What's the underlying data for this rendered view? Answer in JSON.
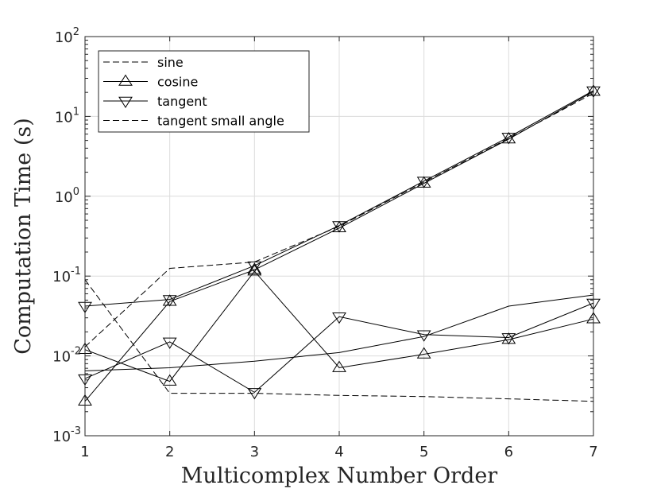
{
  "chart_data": {
    "type": "line",
    "xlabel": "Multicomplex Number Order",
    "ylabel": "Computation Time (s)",
    "x_ticks": [
      "1",
      "2",
      "3",
      "4",
      "5",
      "6",
      "7"
    ],
    "y_scale": "log",
    "y_ticks": [
      {
        "base": "10",
        "exp": "-3"
      },
      {
        "base": "10",
        "exp": "-2"
      },
      {
        "base": "10",
        "exp": "-1"
      },
      {
        "base": "10",
        "exp": "0"
      },
      {
        "base": "10",
        "exp": "1"
      },
      {
        "base": "10",
        "exp": "2"
      }
    ],
    "xlim": [
      1,
      7
    ],
    "ylim": [
      0.001,
      100
    ],
    "grid": true,
    "legend_position": "top-left",
    "legend": [
      {
        "label": "sine",
        "dash": "dashed",
        "marker": "none"
      },
      {
        "label": "cosine",
        "dash": "solid",
        "marker": "triangle-up"
      },
      {
        "label": "tangent",
        "dash": "solid",
        "marker": "triangle-down"
      },
      {
        "label": "tangent small angle",
        "dash": "dashed",
        "marker": "none"
      }
    ],
    "series": [
      {
        "name": "sine",
        "dash": "dashed",
        "marker": "none",
        "x": [
          1,
          2,
          3,
          4,
          5,
          6,
          7
        ],
        "y": [
          0.013,
          0.125,
          0.15,
          0.42,
          1.5,
          5.3,
          19.5
        ]
      },
      {
        "name": "cosine",
        "dash": "solid",
        "marker": "triangle-up",
        "x": [
          1,
          2,
          3,
          4,
          5,
          6,
          7
        ],
        "y": [
          0.0027,
          0.048,
          0.12,
          0.4,
          1.45,
          5.2,
          20.5
        ]
      },
      {
        "name": "tangent",
        "dash": "solid",
        "marker": "triangle-down",
        "x": [
          1,
          2,
          3,
          4,
          5,
          6,
          7
        ],
        "y": [
          0.042,
          0.051,
          0.135,
          0.43,
          1.55,
          5.5,
          21
        ]
      },
      {
        "name": "tangent small angle",
        "dash": "dashed",
        "marker": "none",
        "x": [
          1,
          2,
          3,
          4,
          5,
          6,
          7
        ],
        "y": [
          0.09,
          0.0034,
          0.0034,
          0.0032,
          0.0031,
          0.0029,
          0.0027
        ]
      },
      {
        "dash": "solid",
        "marker": "triangle-up",
        "x": [
          1,
          2,
          3,
          4,
          5,
          6,
          7
        ],
        "y": [
          0.012,
          0.0048,
          0.115,
          0.0071,
          0.0105,
          0.016,
          0.029
        ]
      },
      {
        "dash": "solid",
        "marker": "triangle-down",
        "x": [
          1,
          2,
          3,
          4,
          5,
          6,
          7
        ],
        "y": [
          0.0052,
          0.015,
          0.0035,
          0.031,
          0.0185,
          0.017,
          0.046
        ]
      },
      {
        "dash": "solid",
        "marker": "none",
        "x": [
          1,
          2,
          3,
          4,
          5,
          6,
          7
        ],
        "y": [
          0.0065,
          0.0071,
          0.0086,
          0.011,
          0.0175,
          0.042,
          0.058
        ]
      }
    ]
  }
}
